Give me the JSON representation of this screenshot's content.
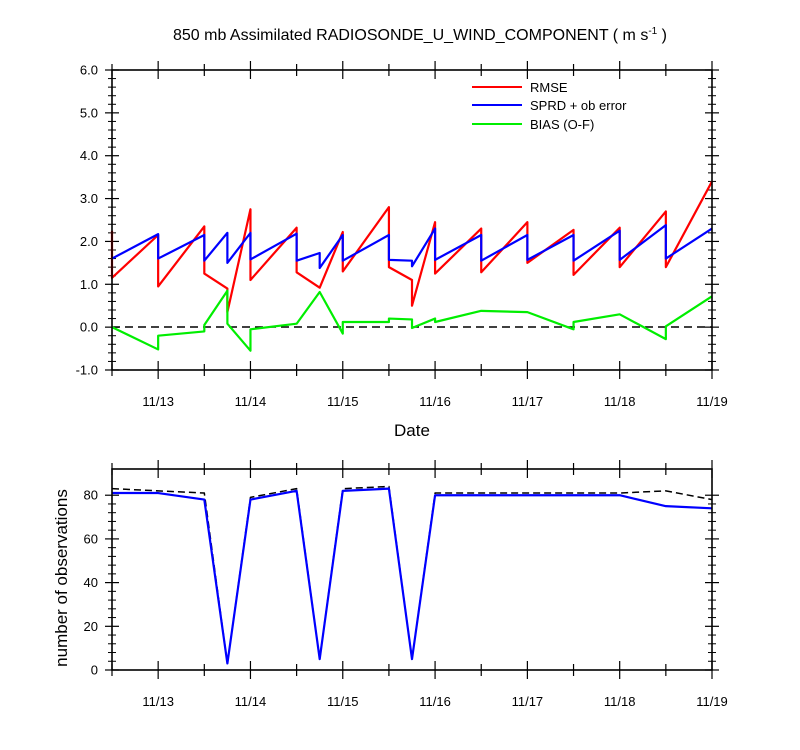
{
  "chart_data": [
    {
      "type": "line",
      "title": "850 mb Assimilated RADIOSONDE_U_WIND_COMPONENT ( m s",
      "title_exponent": "-1",
      "title_suffix": " )",
      "xlabel": "Date",
      "ylabel": "",
      "x_domain": [
        12.5,
        19.0
      ],
      "ylim": [
        -1.0,
        6.0
      ],
      "y_ticks": [
        -1,
        0,
        1,
        2,
        3,
        4,
        5,
        6
      ],
      "y_tick_labels": [
        "-1.0",
        "0.0",
        "1.0",
        "2.0",
        "3.0",
        "4.0",
        "5.0",
        "6.0"
      ],
      "x_tick_positions": [
        13,
        14,
        15,
        16,
        17,
        18,
        19
      ],
      "x_tick_labels": [
        "11/13",
        "11/14",
        "11/15",
        "11/16",
        "11/17",
        "11/18",
        "11/19"
      ],
      "zero_line": true,
      "legend_position": "top-right",
      "series": [
        {
          "name": "RMSE",
          "color": "#ff0000",
          "points": [
            [
              12.5,
              2.25
            ],
            [
              12.5,
              1.15
            ],
            [
              13.0,
              2.15
            ],
            [
              13.0,
              0.95
            ],
            [
              13.5,
              2.35
            ],
            [
              13.5,
              1.25
            ],
            [
              13.75,
              0.9
            ],
            [
              13.75,
              0.35
            ],
            [
              14.0,
              2.75
            ],
            [
              14.0,
              1.1
            ],
            [
              14.5,
              2.32
            ],
            [
              14.5,
              1.28
            ],
            [
              14.75,
              0.92
            ],
            [
              15.0,
              2.22
            ],
            [
              15.0,
              1.3
            ],
            [
              15.5,
              2.8
            ],
            [
              15.5,
              1.4
            ],
            [
              15.75,
              1.1
            ],
            [
              15.75,
              0.5
            ],
            [
              16.0,
              2.45
            ],
            [
              16.0,
              1.25
            ],
            [
              16.5,
              2.3
            ],
            [
              16.5,
              1.28
            ],
            [
              17.0,
              2.45
            ],
            [
              17.0,
              1.5
            ],
            [
              17.5,
              2.27
            ],
            [
              17.5,
              1.22
            ],
            [
              18.0,
              2.32
            ],
            [
              18.0,
              1.4
            ],
            [
              18.5,
              2.7
            ],
            [
              18.5,
              1.4
            ],
            [
              19.0,
              3.4
            ]
          ]
        },
        {
          "name": "SPRD + ob error",
          "color": "#0000ff",
          "points": [
            [
              12.5,
              1.6
            ],
            [
              13.0,
              2.17
            ],
            [
              13.0,
              1.6
            ],
            [
              13.5,
              2.15
            ],
            [
              13.5,
              1.55
            ],
            [
              13.75,
              2.2
            ],
            [
              13.75,
              1.5
            ],
            [
              14.0,
              2.2
            ],
            [
              14.0,
              1.58
            ],
            [
              14.5,
              2.18
            ],
            [
              14.5,
              1.55
            ],
            [
              14.75,
              1.73
            ],
            [
              14.75,
              1.38
            ],
            [
              15.0,
              2.15
            ],
            [
              15.0,
              1.55
            ],
            [
              15.5,
              2.15
            ],
            [
              15.5,
              1.57
            ],
            [
              15.75,
              1.55
            ],
            [
              15.75,
              1.42
            ],
            [
              16.0,
              2.3
            ],
            [
              16.0,
              1.57
            ],
            [
              16.5,
              2.15
            ],
            [
              16.5,
              1.55
            ],
            [
              17.0,
              2.15
            ],
            [
              17.0,
              1.57
            ],
            [
              17.5,
              2.15
            ],
            [
              17.5,
              1.55
            ],
            [
              18.0,
              2.25
            ],
            [
              18.0,
              1.57
            ],
            [
              18.5,
              2.38
            ],
            [
              18.5,
              1.6
            ],
            [
              19.0,
              2.3
            ]
          ]
        },
        {
          "name": "BIAS (O-F)",
          "color": "#00ee00",
          "points": [
            [
              12.5,
              0.0
            ],
            [
              13.0,
              -0.52
            ],
            [
              13.0,
              -0.2
            ],
            [
              13.5,
              -0.1
            ],
            [
              13.5,
              0.05
            ],
            [
              13.75,
              0.85
            ],
            [
              13.75,
              0.08
            ],
            [
              14.0,
              -0.55
            ],
            [
              14.0,
              -0.05
            ],
            [
              14.5,
              0.08
            ],
            [
              14.75,
              0.82
            ],
            [
              15.0,
              -0.15
            ],
            [
              15.0,
              0.12
            ],
            [
              15.5,
              0.12
            ],
            [
              15.5,
              0.2
            ],
            [
              15.75,
              0.18
            ],
            [
              15.75,
              -0.02
            ],
            [
              16.0,
              0.2
            ],
            [
              16.0,
              0.12
            ],
            [
              16.5,
              0.38
            ],
            [
              17.0,
              0.35
            ],
            [
              17.5,
              -0.05
            ],
            [
              17.5,
              0.12
            ],
            [
              18.0,
              0.3
            ],
            [
              18.5,
              -0.28
            ],
            [
              18.5,
              0.02
            ],
            [
              19.0,
              0.72
            ]
          ]
        }
      ]
    },
    {
      "type": "line",
      "title": "",
      "xlabel": "",
      "ylabel": "number of observations",
      "x_domain": [
        12.5,
        19.0
      ],
      "ylim": [
        0,
        92
      ],
      "y_ticks": [
        0,
        20,
        40,
        60,
        80
      ],
      "y_tick_labels": [
        "0",
        "20",
        "40",
        "60",
        "80"
      ],
      "x_tick_positions": [
        13,
        14,
        15,
        16,
        17,
        18,
        19
      ],
      "x_tick_labels": [
        "11/13",
        "11/14",
        "11/15",
        "11/16",
        "11/17",
        "11/18",
        "11/19"
      ],
      "series": [
        {
          "name": "",
          "color": "#000000",
          "dashed": true,
          "points": [
            [
              12.5,
              83
            ],
            [
              13.0,
              82
            ],
            [
              13.5,
              81
            ],
            [
              13.75,
              3
            ],
            [
              14.0,
              79
            ],
            [
              14.5,
              83
            ],
            [
              14.75,
              5
            ],
            [
              15.0,
              83
            ],
            [
              15.5,
              84
            ],
            [
              15.75,
              5
            ],
            [
              16.0,
              81
            ],
            [
              16.5,
              81
            ],
            [
              17.0,
              81
            ],
            [
              17.5,
              81
            ],
            [
              18.0,
              81
            ],
            [
              18.5,
              82
            ],
            [
              19.0,
              78
            ]
          ]
        },
        {
          "name": "",
          "color": "#0000ff",
          "dashed": false,
          "points": [
            [
              12.5,
              81
            ],
            [
              13.0,
              81
            ],
            [
              13.5,
              78
            ],
            [
              13.75,
              3
            ],
            [
              14.0,
              78
            ],
            [
              14.5,
              82
            ],
            [
              14.75,
              5
            ],
            [
              15.0,
              82
            ],
            [
              15.5,
              83
            ],
            [
              15.75,
              5
            ],
            [
              16.0,
              80
            ],
            [
              16.5,
              80
            ],
            [
              17.0,
              80
            ],
            [
              17.5,
              80
            ],
            [
              18.0,
              80
            ],
            [
              18.5,
              75
            ],
            [
              19.0,
              74
            ]
          ]
        }
      ]
    }
  ]
}
